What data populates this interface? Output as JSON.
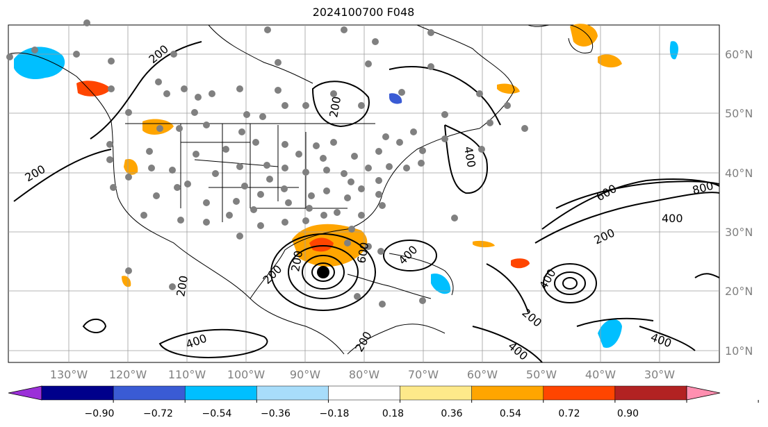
{
  "title": "2024100700 F048",
  "lon_labels": [
    "130°W",
    "120°W",
    "110°W",
    "100°W",
    "90°W",
    "80°W",
    "70°W",
    "60°W",
    "50°W",
    "40°W",
    "30°W"
  ],
  "lat_labels": [
    "60°N",
    "50°N",
    "40°N",
    "30°N",
    "20°N",
    "10°N"
  ],
  "colorbar": {
    "ticks": [
      "−0.90",
      "−0.72",
      "−0.54",
      "−0.36",
      "−0.18",
      "0.18",
      "0.36",
      "0.54",
      "0.72",
      "0.90"
    ],
    "colors": [
      "#9b30d8",
      "#00008b",
      "#3a5bd4",
      "#00bfff",
      "#a8ddfa",
      "#ffffff",
      "#fde98a",
      "#ffa500",
      "#ff4500",
      "#b22222",
      "#ff8fb0"
    ]
  },
  "contour_labels": [
    "200",
    "200",
    "200",
    "200",
    "400",
    "600",
    "800",
    "400",
    "200",
    "200",
    "400",
    "200",
    "400",
    "200",
    "400",
    "200",
    "400",
    "400",
    "600"
  ],
  "colors": {
    "land_line": "#000000",
    "grid": "#9e9e9e",
    "station": "#808080",
    "axis_text": "#808080"
  }
}
